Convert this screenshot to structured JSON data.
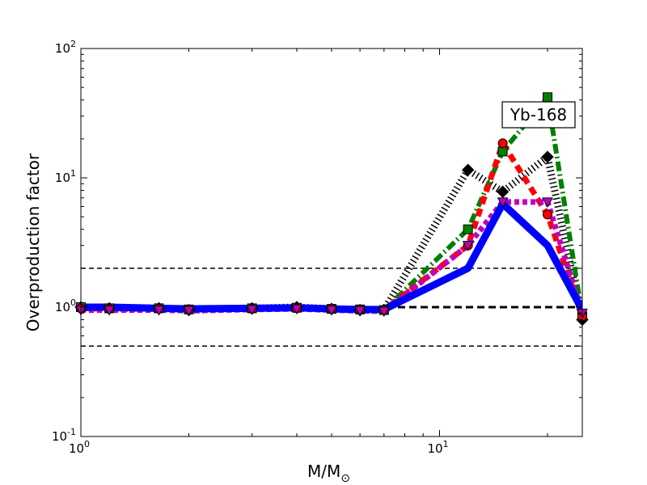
{
  "chart_data": {
    "type": "line",
    "xscale": "log",
    "yscale": "log",
    "xlim": [
      1,
      25
    ],
    "ylim": [
      0.1,
      100
    ],
    "xlabel": "M/M",
    "xlabel_sub": "⊙",
    "ylabel": "Overproduction factor",
    "x_ticks": [
      {
        "value": 1,
        "base": "10",
        "exp": "0"
      },
      {
        "value": 10,
        "base": "10",
        "exp": "1"
      }
    ],
    "y_ticks": [
      {
        "value": 0.1,
        "base": "10",
        "exp": "-1"
      },
      {
        "value": 1,
        "base": "10",
        "exp": "0"
      },
      {
        "value": 10,
        "base": "10",
        "exp": "1"
      },
      {
        "value": 100,
        "base": "10",
        "exp": "2"
      }
    ],
    "annotation": "Yb-168",
    "reference_lines": [
      {
        "y": 0.5,
        "style": "thin-dashed"
      },
      {
        "y": 1.0,
        "style": "thick-dashed"
      },
      {
        "y": 2.0,
        "style": "thin-dashed"
      }
    ],
    "series": [
      {
        "color": "#000000",
        "style": "dotted-thick",
        "marker": "diamond",
        "x": [
          1,
          1.2,
          1.65,
          2,
          3,
          4,
          5,
          6,
          7,
          12,
          15,
          20,
          25
        ],
        "y": [
          1.0,
          0.98,
          0.98,
          0.95,
          0.98,
          1.0,
          0.97,
          0.95,
          0.95,
          11.5,
          7.8,
          14.5,
          0.8
        ]
      },
      {
        "color": "#008000",
        "style": "dashdot",
        "marker": "square",
        "x": [
          1,
          1.2,
          1.65,
          2,
          3,
          4,
          5,
          6,
          7,
          12,
          15,
          20,
          25
        ],
        "y": [
          1.0,
          0.98,
          0.98,
          0.96,
          0.98,
          0.99,
          0.97,
          0.96,
          0.95,
          4.0,
          16.0,
          42.0,
          0.85
        ]
      },
      {
        "color": "#ff0000",
        "style": "dashed",
        "marker": "circle",
        "x": [
          1,
          1.2,
          1.65,
          2,
          3,
          4,
          5,
          6,
          7,
          12,
          15,
          20,
          25
        ],
        "y": [
          0.98,
          0.97,
          0.97,
          0.96,
          0.97,
          0.98,
          0.97,
          0.96,
          0.95,
          3.0,
          18.5,
          5.2,
          0.85
        ]
      },
      {
        "color": "#bf00bf",
        "style": "dotted",
        "marker": "triangle-down",
        "x": [
          1,
          1.2,
          1.65,
          2,
          3,
          4,
          5,
          6,
          7,
          12,
          15,
          20,
          25
        ],
        "y": [
          0.95,
          0.95,
          0.95,
          0.94,
          0.96,
          0.97,
          0.95,
          0.94,
          0.93,
          3.0,
          6.5,
          6.5,
          0.9
        ]
      },
      {
        "color": "#0000ff",
        "style": "solid",
        "marker": "none",
        "x": [
          1,
          1.2,
          1.65,
          2,
          3,
          4,
          5,
          6,
          7,
          12,
          15,
          20,
          25
        ],
        "y": [
          1.0,
          1.0,
          0.98,
          0.97,
          0.98,
          0.99,
          0.97,
          0.96,
          0.96,
          2.0,
          6.3,
          3.0,
          0.95
        ]
      }
    ]
  }
}
